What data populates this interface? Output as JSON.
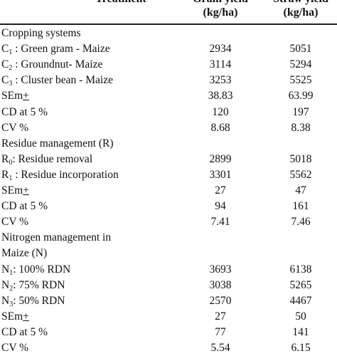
{
  "header": {
    "treatment": "Treatment",
    "grain_line1": "Grain yield",
    "grain_line2": "(kg/ha)",
    "straw_line1": "Straw yield",
    "straw_line2": "(kg/ha)"
  },
  "rows": [
    {
      "type": "section",
      "label": "Cropping systems"
    },
    {
      "type": "data",
      "prefix": "C",
      "sub": "1",
      "label": " : Green gram - Maize",
      "grain": "2934",
      "straw": "5051"
    },
    {
      "type": "data",
      "prefix": "C",
      "sub": "2",
      "label": " : Groundnut- Maize",
      "grain": "3114",
      "straw": "5294"
    },
    {
      "type": "data",
      "prefix": "C",
      "sub": "3",
      "label": " : Cluster bean - Maize",
      "grain": "3253",
      "straw": "5525"
    },
    {
      "type": "sem",
      "label": "SEm",
      "pm": "+",
      "grain": "38.83",
      "straw": "63.99"
    },
    {
      "type": "data",
      "label": "CD at 5 %",
      "grain": "120",
      "straw": "197"
    },
    {
      "type": "data",
      "label": "CV %",
      "grain": "8.68",
      "straw": "8.38"
    },
    {
      "type": "section",
      "label": "Residue management (R)"
    },
    {
      "type": "data",
      "prefix": "R",
      "sub": "0",
      "label": ": Residue removal",
      "grain": "2899",
      "straw": "5018"
    },
    {
      "type": "data",
      "prefix": "R",
      "sub": "1",
      "label": " : Residue incorporation",
      "grain": "3301",
      "straw": "5562"
    },
    {
      "type": "sem",
      "label": "SEm",
      "pm": "+",
      "grain": "27",
      "straw": "47"
    },
    {
      "type": "data",
      "label": "CD at 5 %",
      "grain": "94",
      "straw": "161"
    },
    {
      "type": "data",
      "label": "CV %",
      "grain": "7.41",
      "straw": "7.46"
    },
    {
      "type": "section",
      "label": "Nitrogen management in"
    },
    {
      "type": "section",
      "label": "Maize (N)"
    },
    {
      "type": "data",
      "prefix": "N",
      "sub": "1",
      "label": ": 100% RDN",
      "grain": "3693",
      "straw": "6138"
    },
    {
      "type": "data",
      "prefix": "N",
      "sub": "2",
      "label": ": 75% RDN",
      "grain": "3038",
      "straw": "5265"
    },
    {
      "type": "data",
      "prefix": "N",
      "sub": "3",
      "label": ": 50% RDN",
      "grain": "2570",
      "straw": "4467"
    },
    {
      "type": "sem",
      "label": "SEm",
      "pm": "+",
      "grain": "27",
      "straw": "50"
    },
    {
      "type": "data",
      "label": "CD at 5 %",
      "grain": "77",
      "straw": "141"
    },
    {
      "type": "data",
      "label": "CV %",
      "grain": "5.54",
      "straw": "6.15"
    }
  ]
}
